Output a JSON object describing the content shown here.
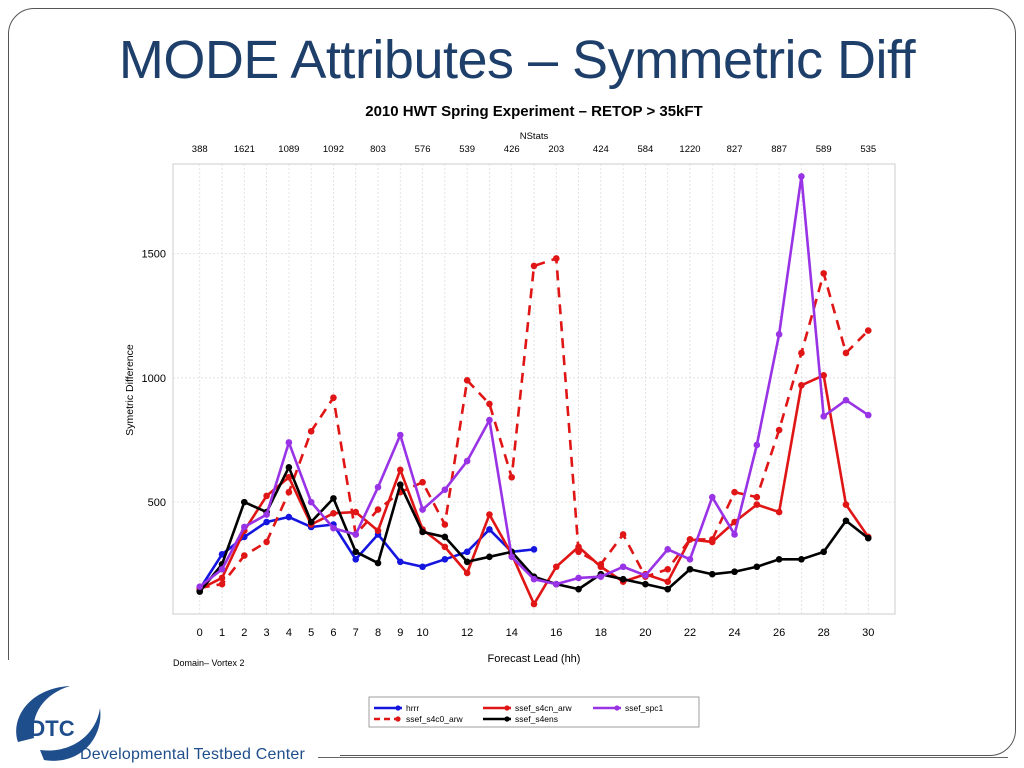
{
  "slide": {
    "title": "MODE Attributes – Symmetric Diff",
    "footer": "Developmental Testbed Center",
    "logo_text": "DTC"
  },
  "chart_data": {
    "type": "line",
    "title": "2010 HWT Spring Experiment – RETOP > 35kFT",
    "top_axis_label": "NStats",
    "top_ticks": [
      "388",
      "1621",
      "1089",
      "1092",
      "803",
      "576",
      "539",
      "426",
      "203",
      "424",
      "584",
      "1220",
      "827",
      "887",
      "589",
      "535"
    ],
    "xlabel": "Forecast Lead (hh)",
    "ylabel": "Symetric Difference",
    "domain_note": "Domain– Vortex 2",
    "x_ticks": [
      0,
      1,
      2,
      3,
      4,
      5,
      6,
      7,
      8,
      9,
      10,
      12,
      14,
      16,
      18,
      20,
      22,
      24,
      26,
      28,
      30
    ],
    "y_ticks": [
      500,
      1000,
      1500
    ],
    "xlim": [
      -1.2,
      31.2
    ],
    "ylim": [
      50,
      1860
    ],
    "grid": true,
    "legend_position": "bottom",
    "series": [
      {
        "name": "hrrr",
        "color": "#1515e0",
        "dash": false,
        "x": [
          0,
          1,
          2,
          3,
          4,
          5,
          6,
          7,
          8,
          9,
          10,
          11,
          12,
          13,
          14,
          15
        ],
        "y": [
          150,
          290,
          360,
          420,
          440,
          400,
          410,
          270,
          370,
          260,
          240,
          270,
          300,
          390,
          300,
          310
        ]
      },
      {
        "name": "ssef_s4c0_arw",
        "color": "#e01515",
        "dash": true,
        "x": [
          0,
          1,
          2,
          3,
          4,
          5,
          6,
          7,
          8,
          9,
          10,
          11,
          12,
          13,
          14,
          15,
          16,
          17,
          18,
          19,
          20,
          21,
          22,
          23,
          24,
          25,
          26,
          27,
          28,
          29,
          30
        ],
        "y": [
          155,
          170,
          285,
          340,
          540,
          785,
          920,
          370,
          470,
          540,
          580,
          410,
          990,
          895,
          600,
          1450,
          1480,
          300,
          250,
          370,
          200,
          230,
          350,
          350,
          540,
          520,
          790,
          1100,
          1420,
          1100,
          1190
        ]
      },
      {
        "name": "ssef_s4cn_arw",
        "color": "#e01515",
        "dash": false,
        "x": [
          0,
          1,
          2,
          3,
          4,
          5,
          6,
          7,
          8,
          9,
          10,
          11,
          12,
          13,
          14,
          15,
          16,
          17,
          18,
          19,
          20,
          21,
          22,
          23,
          24,
          25,
          26,
          27,
          28,
          29,
          30
        ],
        "y": [
          150,
          195,
          385,
          525,
          600,
          410,
          455,
          460,
          385,
          630,
          390,
          320,
          215,
          450,
          290,
          90,
          240,
          320,
          240,
          180,
          210,
          180,
          350,
          340,
          420,
          490,
          460,
          970,
          1010,
          490,
          360
        ]
      },
      {
        "name": "ssef_s4ens",
        "color": "#000000",
        "dash": false,
        "x": [
          0,
          1,
          2,
          3,
          4,
          5,
          6,
          7,
          8,
          9,
          10,
          11,
          12,
          13,
          14,
          15,
          16,
          17,
          18,
          19,
          20,
          21,
          22,
          23,
          24,
          25,
          26,
          27,
          28,
          29,
          30
        ],
        "y": [
          140,
          250,
          500,
          460,
          640,
          420,
          515,
          300,
          255,
          570,
          380,
          360,
          260,
          280,
          300,
          200,
          170,
          150,
          210,
          190,
          170,
          150,
          230,
          210,
          220,
          240,
          270,
          270,
          300,
          425,
          355
        ]
      },
      {
        "name": "ssef_spc1",
        "color": "#9933e6",
        "dash": false,
        "x": [
          0,
          1,
          2,
          3,
          4,
          5,
          6,
          7,
          8,
          9,
          10,
          11,
          12,
          13,
          14,
          15,
          16,
          17,
          18,
          19,
          20,
          21,
          22,
          23,
          24,
          25,
          26,
          27,
          28,
          29,
          30
        ],
        "y": [
          160,
          230,
          400,
          450,
          740,
          500,
          395,
          370,
          560,
          770,
          470,
          550,
          665,
          830,
          280,
          190,
          170,
          195,
          200,
          240,
          205,
          310,
          270,
          520,
          370,
          730,
          1175,
          1810,
          845,
          910,
          850
        ]
      }
    ]
  }
}
